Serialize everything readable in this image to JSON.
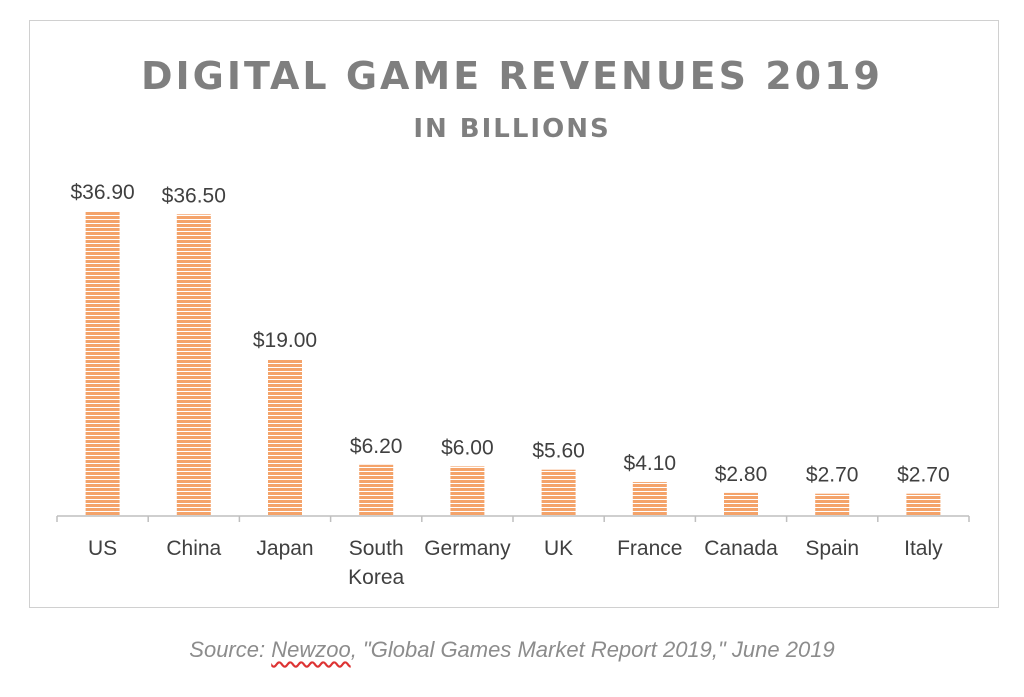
{
  "chart_data": {
    "type": "bar",
    "title": "DIGITAL GAME REVENUES 2019",
    "subtitle": "IN BILLIONS",
    "categories": [
      "US",
      "China",
      "Japan",
      "South Korea",
      "Germany",
      "UK",
      "France",
      "Canada",
      "Spain",
      "Italy"
    ],
    "category_lines": [
      [
        "US"
      ],
      [
        "China"
      ],
      [
        "Japan"
      ],
      [
        "South",
        "Korea"
      ],
      [
        "Germany"
      ],
      [
        "UK"
      ],
      [
        "France"
      ],
      [
        "Canada"
      ],
      [
        "Spain"
      ],
      [
        "Italy"
      ]
    ],
    "values": [
      36.9,
      36.5,
      19.0,
      6.2,
      6.0,
      5.6,
      4.1,
      2.8,
      2.7,
      2.7
    ],
    "data_labels": [
      "$36.90",
      "$36.50",
      "$19.00",
      "$6.20",
      "$6.00",
      "$5.60",
      "$4.10",
      "$2.80",
      "$2.70",
      "$2.70"
    ],
    "xlabel": "",
    "ylabel": "",
    "ylim": [
      0,
      36.9
    ],
    "grid": false,
    "legend": "none",
    "bar_color": "#f4a36a",
    "bar_stripe_color": "#ffffff"
  },
  "source": {
    "prefix": "Source: ",
    "publisher": "Newzoo",
    "rest": ", \"Global Games Market Report 2019,\" June 2019"
  },
  "colors": {
    "text": "#404040",
    "title": "#7f7f7f",
    "axis": "#bfbfbf"
  }
}
